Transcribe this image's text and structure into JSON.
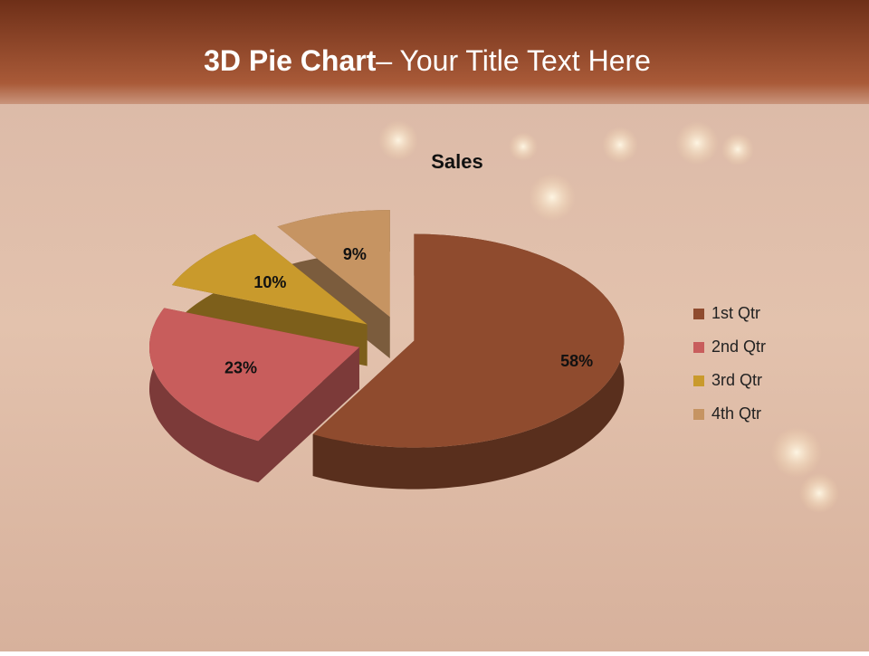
{
  "slide": {
    "title_bold": "3D Pie Chart",
    "title_rest": "– Your Title Text Here"
  },
  "chart_data": {
    "type": "pie3d",
    "title": "Sales",
    "categories": [
      "1st Qtr",
      "2nd Qtr",
      "3rd Qtr",
      "4th Qtr"
    ],
    "values": [
      58,
      23,
      10,
      9
    ],
    "value_labels": [
      "58%",
      "23%",
      "10%",
      "9%"
    ],
    "colors": [
      "#8f4b2e",
      "#c85d5c",
      "#c99a2c",
      "#c69462"
    ],
    "legend": "right"
  }
}
